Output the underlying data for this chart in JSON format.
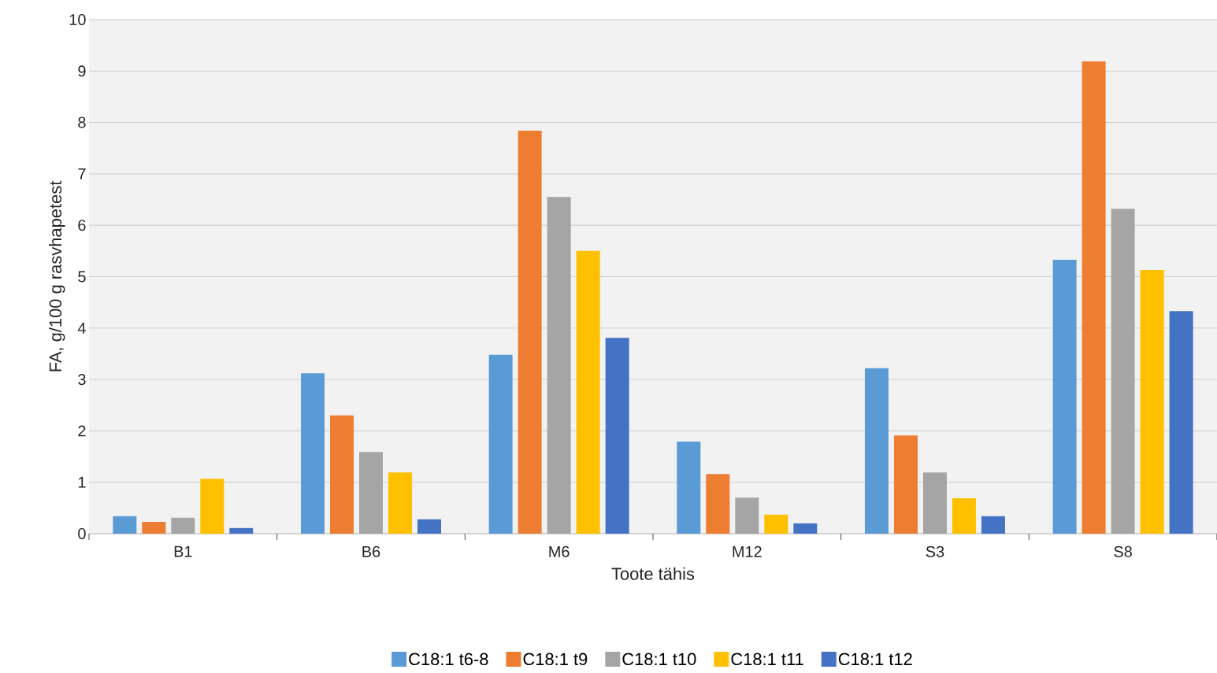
{
  "chart_data": {
    "type": "bar",
    "xlabel": "Toote tähis",
    "ylabel": "FA, g/100 g rasvhapetest",
    "categories": [
      "B1",
      "B6",
      "M6",
      "M12",
      "S3",
      "S8"
    ],
    "series": [
      {
        "name": "C18:1 t6-8",
        "color": "#5b9bd5",
        "values": [
          0.34,
          3.12,
          3.48,
          1.79,
          3.22,
          5.33
        ]
      },
      {
        "name": "C18:1 t9",
        "color": "#ed7d31",
        "values": [
          0.23,
          2.3,
          7.84,
          1.16,
          1.91,
          9.19
        ]
      },
      {
        "name": "C18:1 t10",
        "color": "#a5a5a5",
        "values": [
          0.31,
          1.59,
          6.55,
          0.7,
          1.19,
          6.32
        ]
      },
      {
        "name": "C18:1 t11",
        "color": "#ffc000",
        "values": [
          1.07,
          1.19,
          5.5,
          0.37,
          0.69,
          5.13
        ]
      },
      {
        "name": "C18:1 t12",
        "color": "#4472c4",
        "values": [
          0.11,
          0.28,
          3.81,
          0.2,
          0.34,
          4.33
        ]
      }
    ],
    "ylim": [
      0,
      10
    ],
    "yticks": [
      0,
      1,
      2,
      3,
      4,
      5,
      6,
      7,
      8,
      9,
      10
    ],
    "grid": "y",
    "legend": "bottom"
  }
}
